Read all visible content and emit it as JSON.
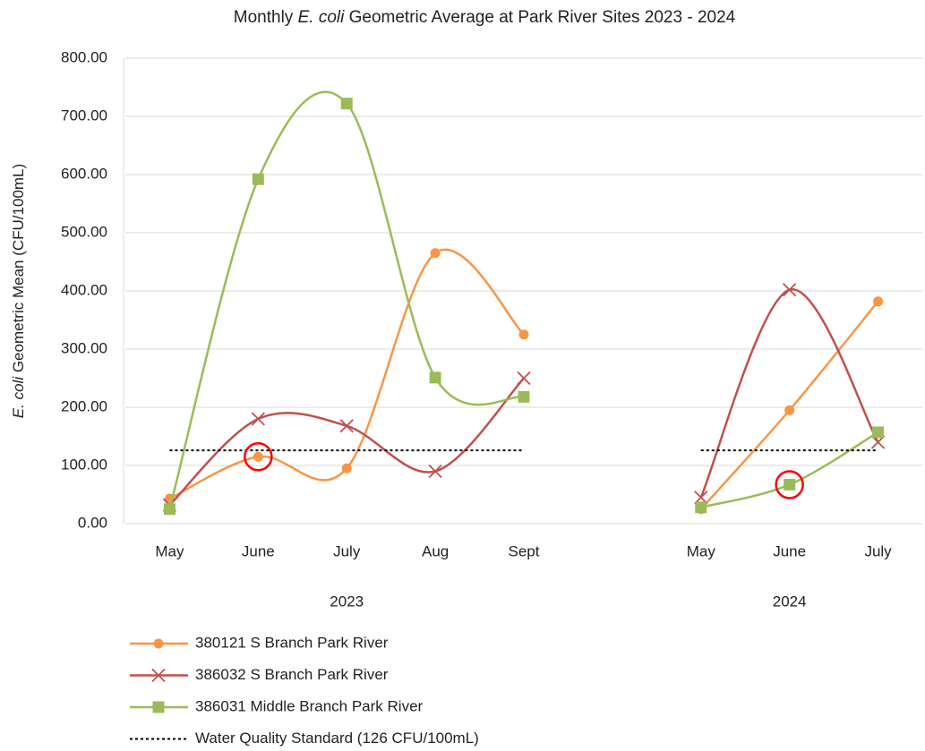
{
  "chart_data": {
    "type": "line",
    "title_parts": [
      "Monthly ",
      "E. coli",
      " Geometric Average at Park River Sites 2023 - 2024"
    ],
    "y_label_parts": [
      "E. coli",
      " Geometric Mean (CFU/100mL)"
    ],
    "categories": [
      "May",
      "June",
      "July",
      "Aug",
      "Sept",
      null,
      "May",
      "June",
      "July"
    ],
    "groups": [
      {
        "label": "2023",
        "start": 0,
        "end": 4
      },
      {
        "label": "2024",
        "start": 6,
        "end": 8
      }
    ],
    "series": [
      {
        "name": "380121 S Branch Park River",
        "color": "#f79646",
        "marker": "circle",
        "smooth": true,
        "values": [
          43,
          115,
          95,
          465,
          325,
          null,
          25,
          195,
          382
        ]
      },
      {
        "name": "386032 S Branch Park River",
        "color": "#c0504d",
        "marker": "x",
        "smooth": true,
        "values": [
          32,
          180,
          168,
          90,
          250,
          null,
          45,
          402,
          140
        ]
      },
      {
        "name": "386031 Middle Branch Park River",
        "color": "#9bbb59",
        "marker": "square",
        "smooth": true,
        "values": [
          25,
          592,
          722,
          251,
          218,
          null,
          28,
          67,
          157
        ]
      },
      {
        "name": "Water Quality Standard (126 CFU/100mL)",
        "color": "#000000",
        "marker": "none",
        "smooth": false,
        "dash": "dotted",
        "values": [
          126,
          126,
          126,
          126,
          126,
          null,
          126,
          126,
          126
        ]
      }
    ],
    "highlighted_points": [
      {
        "series": 0,
        "index": 1
      },
      {
        "series": 2,
        "index": 7
      }
    ],
    "highlight_color": "#ff0000",
    "ylim": [
      0,
      800
    ],
    "yticks": [
      {
        "value": 0,
        "label": "0.00"
      },
      {
        "value": 100,
        "label": "100.00"
      },
      {
        "value": 200,
        "label": "200.00"
      },
      {
        "value": 300,
        "label": "300.00"
      },
      {
        "value": 400,
        "label": "400.00"
      },
      {
        "value": 500,
        "label": "500.00"
      },
      {
        "value": 600,
        "label": "600.00"
      },
      {
        "value": 700,
        "label": "700.00"
      },
      {
        "value": 800,
        "label": "800.00"
      }
    ],
    "grid": true,
    "legend": "bottom-left"
  }
}
